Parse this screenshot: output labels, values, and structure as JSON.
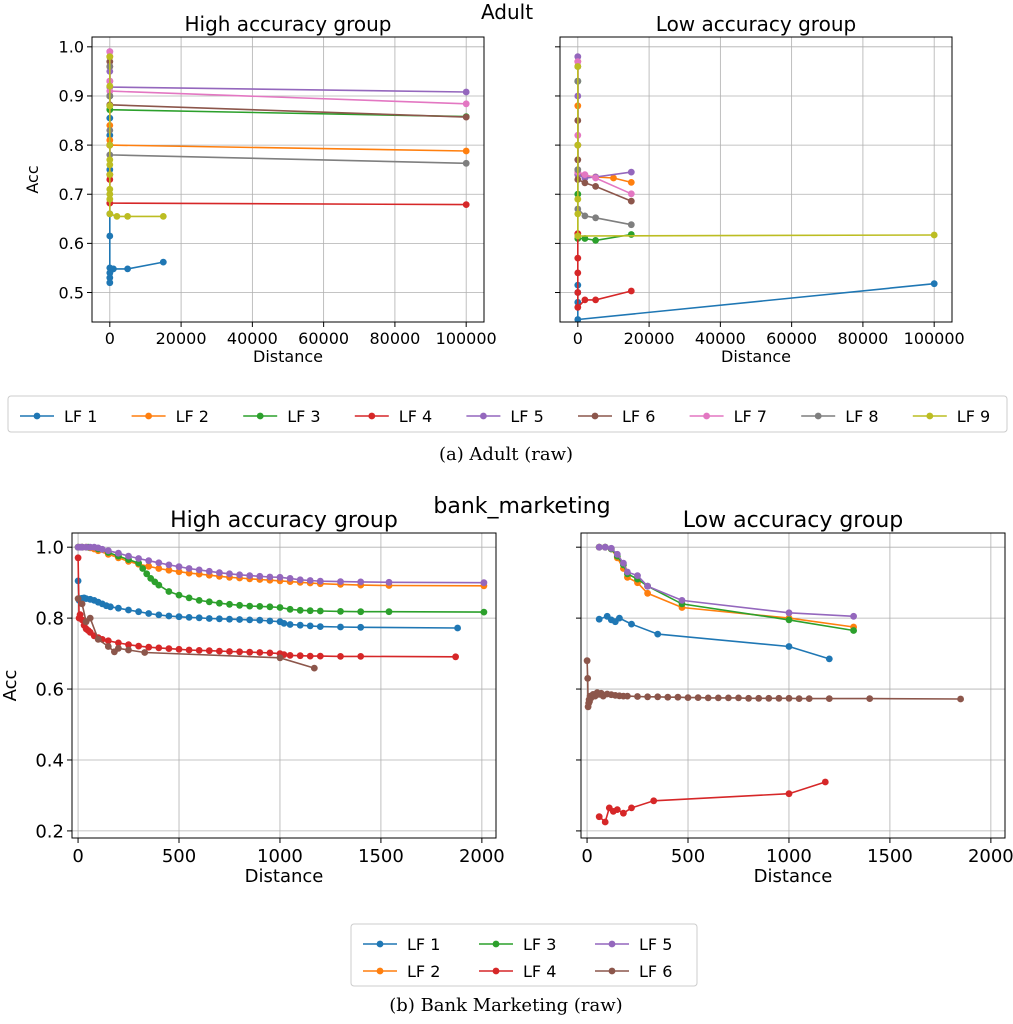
{
  "figures": [
    {
      "suptitle": "Adult",
      "caption": "(a)  Adult (raw)",
      "legend_columns": 9
    },
    {
      "suptitle": "bank_marketing",
      "caption": "(b)  Bank Marketing (raw)",
      "legend_columns": 3
    }
  ],
  "colors": {
    "LF 1": "#1f77b4",
    "LF 2": "#ff7f0e",
    "LF 3": "#2ca02c",
    "LF 4": "#d62728",
    "LF 5": "#9467bd",
    "LF 6": "#8c564b",
    "LF 7": "#e377c2",
    "LF 8": "#7f7f7f",
    "LF 9": "#bcbd22"
  },
  "chart_data": [
    {
      "type": "line",
      "title": "High accuracy group",
      "xlabel": "Distance",
      "ylabel": "Acc",
      "xlim": [
        -5000,
        105000
      ],
      "ylim": [
        0.44,
        1.02
      ],
      "xticks": [
        0,
        20000,
        40000,
        60000,
        80000,
        100000
      ],
      "yticks": [
        0.5,
        0.6,
        0.7,
        0.8,
        0.9,
        1.0
      ],
      "ytick_labels": [
        "0.5",
        "0.6",
        "0.7",
        "0.8",
        "0.9",
        "1.0"
      ],
      "grid": true,
      "series": [
        {
          "name": "LF 1",
          "x": [
            0,
            0,
            0,
            0,
            0,
            0,
            0,
            0,
            0,
            1000,
            5000,
            15000
          ],
          "y": [
            0.855,
            0.82,
            0.75,
            0.66,
            0.615,
            0.55,
            0.54,
            0.53,
            0.52,
            0.548,
            0.548,
            0.562
          ]
        },
        {
          "name": "LF 2",
          "x": [
            0,
            0,
            0,
            0,
            100000
          ],
          "y": [
            0.84,
            0.81,
            0.8,
            0.8,
            0.788
          ]
        },
        {
          "name": "LF 3",
          "x": [
            0,
            0,
            0,
            100000
          ],
          "y": [
            0.9,
            0.88,
            0.872,
            0.858
          ]
        },
        {
          "name": "LF 4",
          "x": [
            0,
            0,
            0,
            0,
            0,
            0,
            100000
          ],
          "y": [
            0.98,
            0.96,
            0.8,
            0.74,
            0.73,
            0.682,
            0.679
          ]
        },
        {
          "name": "LF 5",
          "x": [
            0,
            0,
            0,
            100000
          ],
          "y": [
            0.99,
            0.95,
            0.918,
            0.908
          ]
        },
        {
          "name": "LF 6",
          "x": [
            0,
            0,
            0,
            0,
            100000
          ],
          "y": [
            0.97,
            0.93,
            0.9,
            0.882,
            0.857
          ]
        },
        {
          "name": "LF 7",
          "x": [
            0,
            0,
            0,
            0,
            100000
          ],
          "y": [
            0.99,
            0.96,
            0.93,
            0.91,
            0.884
          ]
        },
        {
          "name": "LF 8",
          "x": [
            0,
            0,
            0,
            0,
            100000
          ],
          "y": [
            0.96,
            0.9,
            0.83,
            0.78,
            0.763
          ]
        },
        {
          "name": "LF 9",
          "x": [
            0,
            0,
            0,
            0,
            0,
            0,
            0,
            0,
            0,
            0,
            0,
            2000,
            5000,
            15000
          ],
          "y": [
            0.98,
            0.92,
            0.88,
            0.8,
            0.77,
            0.76,
            0.74,
            0.71,
            0.7,
            0.69,
            0.66,
            0.655,
            0.655,
            0.655
          ]
        }
      ]
    },
    {
      "type": "line",
      "title": "Low accuracy group",
      "xlabel": "Distance",
      "ylabel": "",
      "xlim": [
        -5000,
        105000
      ],
      "ylim": [
        0.44,
        1.02
      ],
      "xticks": [
        0,
        20000,
        40000,
        60000,
        80000,
        100000
      ],
      "yticks": [
        0.5,
        0.6,
        0.7,
        0.8,
        0.9,
        1.0
      ],
      "ytick_labels": [
        "",
        "",
        "",
        "",
        "",
        ""
      ],
      "grid": true,
      "series": [
        {
          "name": "LF 1",
          "x": [
            0,
            0,
            0,
            0,
            100000
          ],
          "y": [
            0.515,
            0.5,
            0.48,
            0.445,
            0.518
          ]
        },
        {
          "name": "LF 2",
          "x": [
            0,
            0,
            0,
            0,
            2000,
            5000,
            10000,
            15000
          ],
          "y": [
            0.97,
            0.88,
            0.8,
            0.74,
            0.738,
            0.735,
            0.733,
            0.724
          ]
        },
        {
          "name": "LF 3",
          "x": [
            0,
            0,
            0,
            2000,
            5000,
            15000
          ],
          "y": [
            0.93,
            0.7,
            0.61,
            0.61,
            0.606,
            0.618
          ]
        },
        {
          "name": "LF 4",
          "x": [
            0,
            0,
            0,
            0,
            0,
            2000,
            5000,
            15000
          ],
          "y": [
            0.62,
            0.57,
            0.54,
            0.5,
            0.47,
            0.485,
            0.485,
            0.503
          ]
        },
        {
          "name": "LF 5",
          "x": [
            0,
            0,
            0,
            0,
            2000,
            5000,
            15000
          ],
          "y": [
            0.98,
            0.9,
            0.8,
            0.74,
            0.733,
            0.735,
            0.745
          ]
        },
        {
          "name": "LF 6",
          "x": [
            0,
            0,
            0,
            0,
            2000,
            5000,
            15000
          ],
          "y": [
            0.96,
            0.85,
            0.77,
            0.73,
            0.723,
            0.716,
            0.686
          ]
        },
        {
          "name": "LF 7",
          "x": [
            0,
            0,
            0,
            2000,
            5000,
            15000
          ],
          "y": [
            0.97,
            0.82,
            0.745,
            0.74,
            0.733,
            0.701
          ]
        },
        {
          "name": "LF 8",
          "x": [
            0,
            0,
            0,
            2000,
            5000,
            15000
          ],
          "y": [
            0.93,
            0.75,
            0.67,
            0.656,
            0.652,
            0.638
          ]
        },
        {
          "name": "LF 9",
          "x": [
            0,
            0,
            0,
            0,
            0,
            100000
          ],
          "y": [
            0.96,
            0.8,
            0.69,
            0.66,
            0.615,
            0.617
          ]
        }
      ]
    },
    {
      "type": "line",
      "title": "High accuracy group",
      "xlabel": "Distance",
      "ylabel": "Acc",
      "xlim": [
        -30,
        2070
      ],
      "ylim": [
        0.18,
        1.04
      ],
      "xticks": [
        0,
        500,
        1000,
        1500,
        2000
      ],
      "yticks": [
        0.2,
        0.4,
        0.6,
        0.8,
        1.0
      ],
      "ytick_labels": [
        "0.2",
        "0.4",
        "0.6",
        "0.8",
        "1.0"
      ],
      "grid": true,
      "series": [
        {
          "name": "LF 1",
          "x": [
            0,
            5,
            10,
            20,
            30,
            40,
            60,
            80,
            100,
            120,
            140,
            160,
            200,
            250,
            300,
            350,
            400,
            450,
            500,
            550,
            600,
            650,
            700,
            750,
            800,
            850,
            900,
            950,
            1000,
            1020,
            1050,
            1100,
            1150,
            1200,
            1300,
            1400,
            1880
          ],
          "y": [
            0.905,
            0.85,
            0.855,
            0.856,
            0.857,
            0.855,
            0.853,
            0.85,
            0.845,
            0.84,
            0.835,
            0.832,
            0.828,
            0.823,
            0.818,
            0.813,
            0.809,
            0.806,
            0.804,
            0.802,
            0.801,
            0.799,
            0.798,
            0.797,
            0.796,
            0.795,
            0.794,
            0.792,
            0.79,
            0.785,
            0.782,
            0.78,
            0.778,
            0.776,
            0.775,
            0.774,
            0.772
          ]
        },
        {
          "name": "LF 2",
          "x": [
            0,
            20,
            40,
            60,
            80,
            100,
            150,
            200,
            250,
            300,
            350,
            400,
            450,
            500,
            550,
            600,
            650,
            700,
            750,
            800,
            850,
            900,
            950,
            1000,
            1050,
            1100,
            1150,
            1200,
            1300,
            1400,
            1540,
            2010
          ],
          "y": [
            1.0,
            1.0,
            1.0,
            0.998,
            0.995,
            0.99,
            0.98,
            0.97,
            0.96,
            0.952,
            0.946,
            0.94,
            0.935,
            0.931,
            0.927,
            0.924,
            0.921,
            0.918,
            0.915,
            0.913,
            0.911,
            0.909,
            0.907,
            0.905,
            0.903,
            0.901,
            0.899,
            0.897,
            0.895,
            0.893,
            0.892,
            0.891
          ]
        },
        {
          "name": "LF 3",
          "x": [
            0,
            20,
            50,
            100,
            150,
            200,
            250,
            300,
            320,
            340,
            360,
            380,
            400,
            450,
            500,
            550,
            600,
            650,
            700,
            750,
            800,
            850,
            900,
            950,
            1000,
            1050,
            1100,
            1150,
            1200,
            1300,
            1400,
            1540,
            2010
          ],
          "y": [
            1.0,
            1.0,
            1.0,
            0.995,
            0.985,
            0.975,
            0.965,
            0.955,
            0.94,
            0.925,
            0.912,
            0.902,
            0.893,
            0.875,
            0.865,
            0.857,
            0.85,
            0.846,
            0.842,
            0.839,
            0.836,
            0.834,
            0.833,
            0.832,
            0.83,
            0.825,
            0.822,
            0.821,
            0.82,
            0.819,
            0.818,
            0.818,
            0.817
          ]
        },
        {
          "name": "LF 4",
          "x": [
            0,
            5,
            10,
            20,
            30,
            40,
            50,
            60,
            80,
            100,
            120,
            150,
            200,
            250,
            300,
            350,
            400,
            450,
            500,
            550,
            600,
            650,
            700,
            750,
            800,
            850,
            900,
            950,
            1000,
            1020,
            1050,
            1100,
            1150,
            1200,
            1300,
            1400,
            1870
          ],
          "y": [
            0.97,
            0.8,
            0.81,
            0.795,
            0.78,
            0.77,
            0.765,
            0.76,
            0.75,
            0.745,
            0.74,
            0.736,
            0.73,
            0.725,
            0.721,
            0.718,
            0.716,
            0.714,
            0.712,
            0.71,
            0.709,
            0.708,
            0.707,
            0.706,
            0.705,
            0.704,
            0.703,
            0.702,
            0.7,
            0.697,
            0.695,
            0.694,
            0.693,
            0.693,
            0.692,
            0.692,
            0.691
          ]
        },
        {
          "name": "LF 5",
          "x": [
            0,
            10,
            20,
            40,
            60,
            80,
            100,
            120,
            150,
            200,
            250,
            300,
            350,
            400,
            450,
            500,
            550,
            600,
            650,
            700,
            750,
            800,
            850,
            900,
            950,
            1000,
            1050,
            1100,
            1150,
            1200,
            1300,
            1400,
            1540,
            2010
          ],
          "y": [
            1.0,
            1.0,
            1.0,
            1.0,
            1.0,
            1.0,
            0.998,
            0.994,
            0.99,
            0.983,
            0.975,
            0.968,
            0.962,
            0.956,
            0.95,
            0.945,
            0.94,
            0.936,
            0.932,
            0.928,
            0.925,
            0.922,
            0.92,
            0.918,
            0.916,
            0.915,
            0.912,
            0.908,
            0.906,
            0.904,
            0.903,
            0.902,
            0.901,
            0.9
          ]
        },
        {
          "name": "LF 6",
          "x": [
            0,
            20,
            40,
            60,
            100,
            150,
            180,
            200,
            250,
            330,
            1000,
            1170
          ],
          "y": [
            0.855,
            0.84,
            0.79,
            0.8,
            0.74,
            0.72,
            0.705,
            0.715,
            0.71,
            0.703,
            0.688,
            0.659
          ]
        }
      ]
    },
    {
      "type": "line",
      "title": "Low accuracy group",
      "xlabel": "Distance",
      "ylabel": "",
      "xlim": [
        -30,
        2070
      ],
      "ylim": [
        0.18,
        1.04
      ],
      "xticks": [
        0,
        500,
        1000,
        1500,
        2000
      ],
      "yticks": [
        0.2,
        0.4,
        0.6,
        0.8,
        1.0
      ],
      "ytick_labels": [
        "",
        "",
        "",
        "",
        ""
      ],
      "grid": true,
      "series": [
        {
          "name": "LF 1",
          "x": [
            60,
            100,
            120,
            140,
            160,
            220,
            350,
            1000,
            1200
          ],
          "y": [
            0.797,
            0.805,
            0.795,
            0.79,
            0.8,
            0.783,
            0.755,
            0.72,
            0.685
          ]
        },
        {
          "name": "LF 2",
          "x": [
            60,
            90,
            120,
            150,
            180,
            200,
            250,
            300,
            470,
            1000,
            1320
          ],
          "y": [
            1.0,
            1.0,
            0.995,
            0.97,
            0.94,
            0.915,
            0.9,
            0.87,
            0.83,
            0.8,
            0.775
          ]
        },
        {
          "name": "LF 3",
          "x": [
            60,
            90,
            120,
            150,
            180,
            200,
            250,
            300,
            470,
            1000,
            1320
          ],
          "y": [
            1.0,
            1.0,
            0.995,
            0.975,
            0.95,
            0.925,
            0.91,
            0.89,
            0.84,
            0.795,
            0.765
          ]
        },
        {
          "name": "LF 4",
          "x": [
            60,
            90,
            110,
            130,
            150,
            180,
            220,
            330,
            1000,
            1180
          ],
          "y": [
            0.24,
            0.225,
            0.265,
            0.255,
            0.26,
            0.25,
            0.265,
            0.285,
            0.305,
            0.338
          ]
        },
        {
          "name": "LF 5",
          "x": [
            60,
            90,
            120,
            150,
            180,
            200,
            250,
            300,
            470,
            1000,
            1320
          ],
          "y": [
            1.0,
            1.0,
            0.997,
            0.98,
            0.955,
            0.93,
            0.92,
            0.89,
            0.85,
            0.815,
            0.805
          ]
        },
        {
          "name": "LF 6",
          "x": [
            0,
            3,
            5,
            8,
            10,
            12,
            15,
            20,
            30,
            40,
            50,
            60,
            70,
            80,
            100,
            120,
            140,
            160,
            180,
            200,
            250,
            300,
            350,
            400,
            450,
            500,
            550,
            600,
            650,
            700,
            750,
            800,
            850,
            900,
            950,
            1000,
            1050,
            1100,
            1200,
            1400,
            1850
          ],
          "y": [
            0.68,
            0.63,
            0.55,
            0.56,
            0.57,
            0.565,
            0.58,
            0.575,
            0.585,
            0.58,
            0.59,
            0.585,
            0.588,
            0.58,
            0.586,
            0.584,
            0.582,
            0.581,
            0.58,
            0.58,
            0.579,
            0.578,
            0.578,
            0.577,
            0.577,
            0.576,
            0.576,
            0.575,
            0.575,
            0.575,
            0.575,
            0.574,
            0.574,
            0.574,
            0.574,
            0.574,
            0.573,
            0.573,
            0.573,
            0.573,
            0.572
          ]
        }
      ]
    }
  ]
}
